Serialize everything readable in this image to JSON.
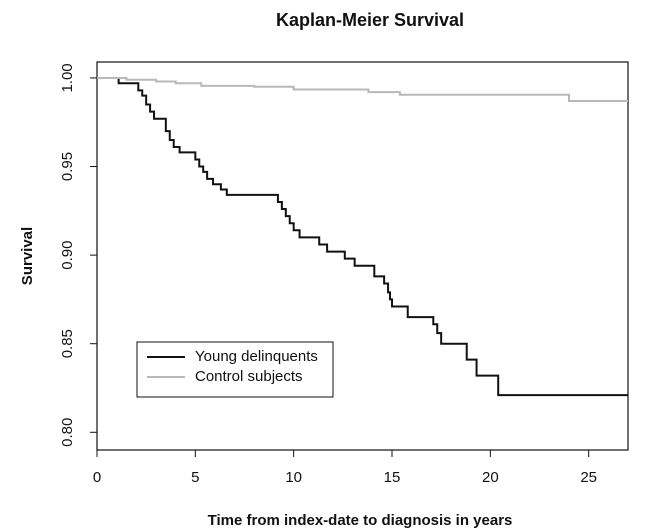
{
  "chart_data": {
    "type": "line",
    "step": "post",
    "title": "Kaplan-Meier Survival",
    "x_label": "Time from index-date to diagnosis in years",
    "y_label": "Survival",
    "xlim": [
      0,
      27
    ],
    "xticks": [
      0,
      5,
      10,
      15,
      20,
      25
    ],
    "ylim": [
      0.79,
      1.009
    ],
    "yticks": [
      {
        "value": 0.8,
        "label": "0.80"
      },
      {
        "value": 0.85,
        "label": "0.85"
      },
      {
        "value": 0.9,
        "label": "0.90"
      },
      {
        "value": 0.95,
        "label": "0.95"
      },
      {
        "value": 1.0,
        "label": "1.00"
      }
    ],
    "legend_position": "bottom-left",
    "series": [
      {
        "name": "Young delinquents",
        "color": "#111111",
        "x": [
          0,
          1.1,
          2.1,
          2.3,
          2.5,
          2.7,
          2.9,
          3.5,
          3.7,
          3.9,
          4.2,
          5.0,
          5.2,
          5.4,
          5.6,
          5.9,
          6.3,
          6.6,
          9.2,
          9.4,
          9.6,
          9.8,
          10.0,
          10.3,
          11.3,
          11.7,
          12.6,
          13.1,
          14.1,
          14.6,
          14.8,
          14.9,
          15.0,
          15.8,
          17.1,
          17.3,
          17.5,
          18.8,
          19.3,
          20.4,
          27
        ],
        "values": [
          1.0,
          0.997,
          0.993,
          0.99,
          0.985,
          0.981,
          0.977,
          0.97,
          0.965,
          0.961,
          0.958,
          0.954,
          0.95,
          0.947,
          0.943,
          0.94,
          0.937,
          0.934,
          0.93,
          0.926,
          0.922,
          0.918,
          0.914,
          0.91,
          0.906,
          0.902,
          0.898,
          0.894,
          0.888,
          0.884,
          0.879,
          0.875,
          0.871,
          0.865,
          0.861,
          0.856,
          0.85,
          0.841,
          0.832,
          0.821,
          0.821
        ]
      },
      {
        "name": "Control subjects",
        "color": "#b8b8b8",
        "x": [
          0,
          1.5,
          3,
          4,
          5.3,
          8,
          10,
          13.8,
          15.4,
          24,
          27
        ],
        "values": [
          1.0,
          0.999,
          0.998,
          0.997,
          0.9955,
          0.995,
          0.9935,
          0.992,
          0.9905,
          0.987,
          0.987
        ]
      }
    ]
  }
}
